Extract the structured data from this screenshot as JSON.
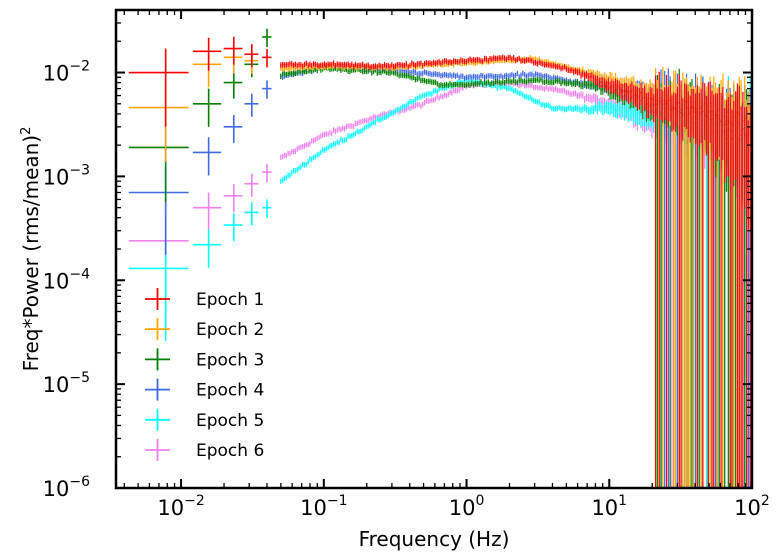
{
  "chart_data": {
    "type": "scatter",
    "xlabel": "Frequency (Hz)",
    "ylabel": "Freq*Power (rms/mean)",
    "ylabel_superscript": "2",
    "x_scale": "log",
    "y_scale": "log",
    "xlim": [
      0.0035,
      100
    ],
    "ylim": [
      1e-06,
      0.04
    ],
    "x_ticks": [
      {
        "value": 0.01,
        "base": "10",
        "exp": "−2"
      },
      {
        "value": 0.1,
        "base": "10",
        "exp": "−1"
      },
      {
        "value": 1,
        "base": "10",
        "exp": "0"
      },
      {
        "value": 10,
        "base": "10",
        "exp": "1"
      },
      {
        "value": 100,
        "base": "10",
        "exp": "2"
      }
    ],
    "y_ticks": [
      {
        "value": 1e-06,
        "base": "10",
        "exp": "−6"
      },
      {
        "value": 1e-05,
        "base": "10",
        "exp": "−5"
      },
      {
        "value": 0.0001,
        "base": "10",
        "exp": "−4"
      },
      {
        "value": 0.001,
        "base": "10",
        "exp": "−3"
      },
      {
        "value": 0.01,
        "base": "10",
        "exp": "−2"
      }
    ],
    "grid": false,
    "legend_position": "bottom-left",
    "series": [
      {
        "name": "Epoch 1",
        "color": "#ff0000",
        "x": [
          0.0078,
          0.0156,
          0.0234,
          0.0313,
          0.04
        ],
        "y": [
          0.01,
          0.016,
          0.017,
          0.015,
          0.014
        ],
        "x_err": [
          0.0035,
          0.0035,
          0.0035,
          0.0035,
          0.003
        ],
        "y_err_frac": [
          0.7,
          0.35,
          0.3,
          0.25,
          0.2
        ],
        "profile": "epoch1"
      },
      {
        "name": "Epoch 2",
        "color": "#ffa500",
        "x": [
          0.0078,
          0.0156,
          0.0234,
          0.0313
        ],
        "y": [
          0.0046,
          0.012,
          0.014,
          0.013
        ],
        "x_err": [
          0.0035,
          0.0035,
          0.0035,
          0.0035
        ],
        "y_err_frac": [
          0.7,
          0.4,
          0.3,
          0.25
        ],
        "profile": "epoch2"
      },
      {
        "name": "Epoch 3",
        "color": "#008000",
        "x": [
          0.0078,
          0.0156,
          0.0234,
          0.0313,
          0.04
        ],
        "y": [
          0.0019,
          0.005,
          0.008,
          0.012,
          0.022
        ],
        "x_err": [
          0.0035,
          0.0035,
          0.0035,
          0.0035,
          0.003
        ],
        "y_err_frac": [
          0.7,
          0.4,
          0.3,
          0.25,
          0.2
        ],
        "profile": "epoch3"
      },
      {
        "name": "Epoch 4",
        "color": "#4169e1",
        "x": [
          0.0078,
          0.0156,
          0.0234,
          0.0313,
          0.04
        ],
        "y": [
          0.0007,
          0.0017,
          0.003,
          0.005,
          0.007
        ],
        "x_err": [
          0.0035,
          0.0035,
          0.0035,
          0.0035,
          0.003
        ],
        "y_err_frac": [
          0.75,
          0.4,
          0.3,
          0.25,
          0.2
        ],
        "profile": "epoch4"
      },
      {
        "name": "Epoch 5",
        "color": "#00ffff",
        "x": [
          0.0078,
          0.0156,
          0.0234,
          0.0313,
          0.04
        ],
        "y": [
          0.00013,
          0.00022,
          0.00034,
          0.00045,
          0.0005
        ],
        "x_err": [
          0.0035,
          0.0035,
          0.0035,
          0.0035,
          0.003
        ],
        "y_err_frac": [
          0.8,
          0.4,
          0.3,
          0.25,
          0.2
        ],
        "profile": "epoch5"
      },
      {
        "name": "Epoch 6",
        "color": "#ee82ee",
        "x": [
          0.0078,
          0.0156,
          0.0234,
          0.0313,
          0.04
        ],
        "y": [
          0.00024,
          0.0005,
          0.00065,
          0.00085,
          0.0011
        ],
        "x_err": [
          0.0035,
          0.0035,
          0.0035,
          0.0035,
          0.003
        ],
        "y_err_frac": [
          0.8,
          0.4,
          0.3,
          0.25,
          0.2
        ],
        "profile": "epoch6"
      }
    ]
  }
}
